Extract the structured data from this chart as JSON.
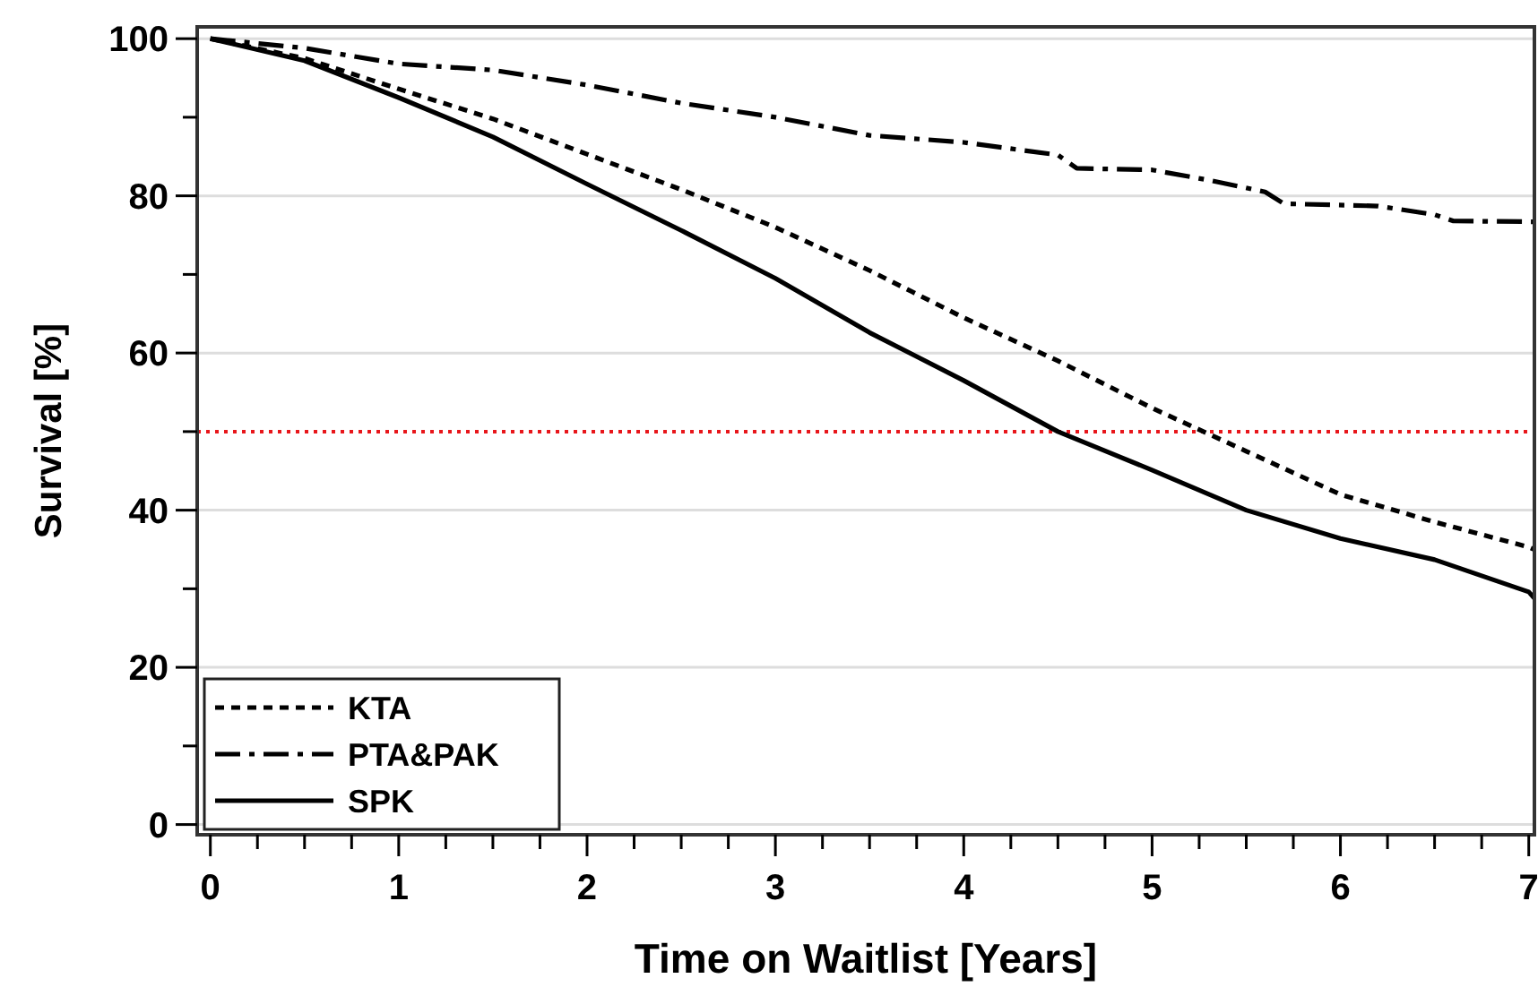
{
  "chart_data": {
    "type": "line",
    "xlabel": "Time on Waitlist [Years]",
    "ylabel": "Survival [%]",
    "xlim": [
      -0.07,
      7.03
    ],
    "ylim": [
      -1.3,
      101.5
    ],
    "xticks": [
      0,
      {
        "value": 0.25,
        "label": null
      },
      {
        "value": 0.5,
        "label": null
      },
      {
        "value": 0.75,
        "label": null
      },
      1,
      {
        "value": 1.25,
        "label": null
      },
      {
        "value": 1.5,
        "label": null
      },
      {
        "value": 1.75,
        "label": null
      },
      2,
      {
        "value": 2.25,
        "label": null
      },
      {
        "value": 2.5,
        "label": null
      },
      {
        "value": 2.75,
        "label": null
      },
      3,
      {
        "value": 3.25,
        "label": null
      },
      {
        "value": 3.5,
        "label": null
      },
      {
        "value": 3.75,
        "label": null
      },
      4,
      {
        "value": 4.25,
        "label": null
      },
      {
        "value": 4.5,
        "label": null
      },
      {
        "value": 4.75,
        "label": null
      },
      5,
      {
        "value": 5.25,
        "label": null
      },
      {
        "value": 5.5,
        "label": null
      },
      {
        "value": 5.75,
        "label": null
      },
      6,
      {
        "value": 6.25,
        "label": null
      },
      {
        "value": 6.5,
        "label": null
      },
      {
        "value": 6.75,
        "label": null
      },
      7
    ],
    "yticks": [
      0,
      {
        "value": 10,
        "label": null
      },
      20,
      {
        "value": 30,
        "label": null
      },
      40,
      {
        "value": 50,
        "label": null
      },
      60,
      {
        "value": 70,
        "label": null
      },
      80,
      {
        "value": 90,
        "label": null
      },
      100
    ],
    "grid": "y",
    "legend": "bottom left",
    "ref_lines": [
      {
        "axis": "y",
        "value": 50,
        "color": "#e8161b",
        "line_style": "dotted"
      }
    ],
    "series": [
      {
        "name": "KTA",
        "color": "#000000",
        "line_style": "dotted",
        "x": [
          0,
          0.5,
          1,
          1.5,
          2,
          2.5,
          3,
          3.5,
          4,
          4.5,
          5,
          5.5,
          6,
          6.5,
          7,
          7.03
        ],
        "values": [
          100,
          97.5,
          93.6,
          89.8,
          85.3,
          80.8,
          76,
          70.5,
          64.5,
          59,
          53,
          47.5,
          42,
          38.5,
          35.3,
          35
        ]
      },
      {
        "name": "PTA&PAK",
        "color": "#000000",
        "line_style": "dashed",
        "x": [
          0,
          0.5,
          1,
          1.5,
          2,
          2.5,
          3,
          3.5,
          4,
          4.5,
          4.6,
          5,
          5.3,
          5.6,
          5.7,
          6.2,
          6.5,
          6.6,
          7.03
        ],
        "values": [
          100,
          98.8,
          96.8,
          96,
          94.1,
          91.8,
          90,
          87.7,
          86.8,
          85.2,
          83.5,
          83.3,
          82,
          80.5,
          79,
          78.7,
          77.6,
          76.8,
          76.7
        ]
      },
      {
        "name": "SPK",
        "color": "#000000",
        "line_style": "solid",
        "x": [
          0,
          0.5,
          1,
          1.5,
          2,
          2.5,
          3,
          3.5,
          4,
          4.5,
          5,
          5.5,
          6,
          6.5,
          7,
          7.03
        ],
        "values": [
          100,
          97.2,
          92.5,
          87.5,
          81.5,
          75.6,
          69.5,
          62.6,
          56.5,
          50,
          45.1,
          40,
          36.4,
          33.7,
          29.6,
          28.8
        ]
      }
    ]
  }
}
